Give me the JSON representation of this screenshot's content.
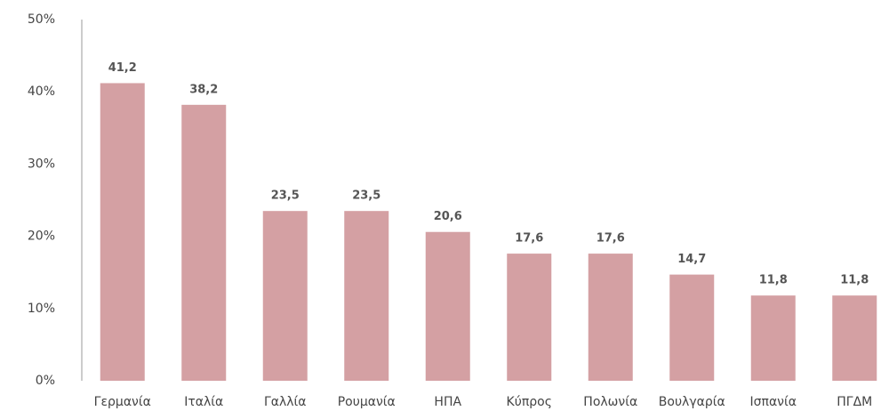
{
  "chart_data": {
    "type": "bar",
    "categories": [
      "Γερμανία",
      "Ιταλία",
      "Γαλλία",
      "Ρουμανία",
      "ΗΠΑ",
      "Κύπρος",
      "Πολωνία",
      "Βουλγαρία",
      "Ισπανία",
      "ΠΓΔΜ"
    ],
    "values": [
      41.2,
      38.2,
      23.5,
      23.5,
      20.6,
      17.6,
      17.6,
      14.7,
      11.8,
      11.8
    ],
    "value_labels": [
      "41,2",
      "38,2",
      "23,5",
      "23,5",
      "20,6",
      "17,6",
      "17,6",
      "14,7",
      "11,8",
      "11,8"
    ],
    "color": "#d4a0a3",
    "ylim": [
      0,
      50
    ],
    "yticks": [
      {
        "value": 0,
        "label": "0%"
      },
      {
        "value": 10,
        "label": "10%"
      },
      {
        "value": 20,
        "label": "20%"
      },
      {
        "value": 30,
        "label": "30%"
      },
      {
        "value": 40,
        "label": "40%"
      },
      {
        "value": 50,
        "label": "50%"
      }
    ],
    "grid": false
  }
}
